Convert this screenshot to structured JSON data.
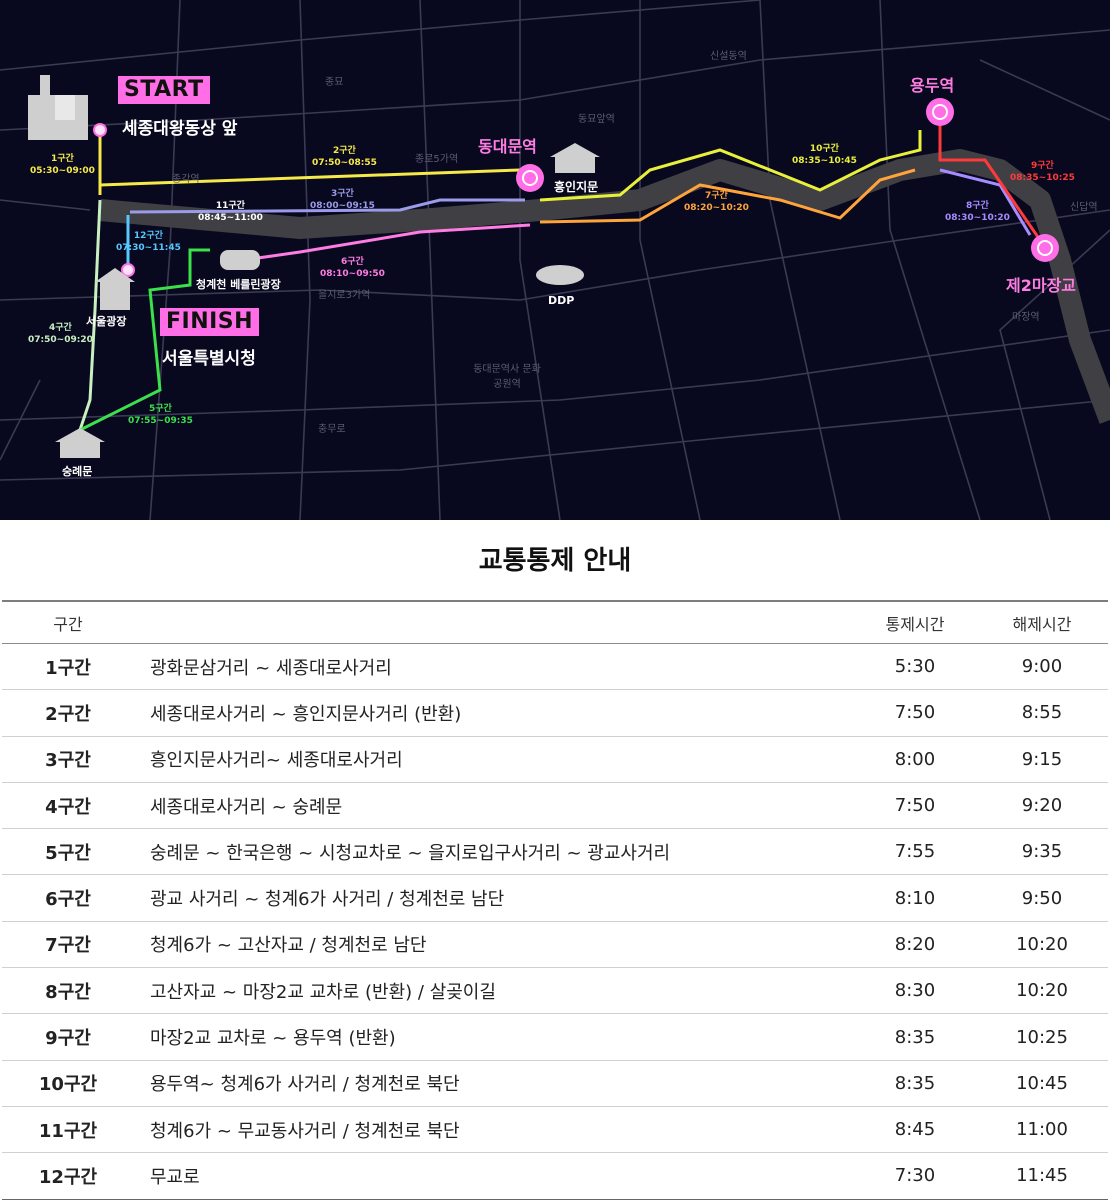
{
  "map": {
    "streets": [
      "종묘",
      "신설동역",
      "동묘앞역",
      "종로5가역",
      "종각역",
      "을지로3가역",
      "동대문역사 문화공원역",
      "충무로",
      "신답역",
      "마장역"
    ],
    "start": {
      "tag": "START",
      "place": "세종대왕동상 앞"
    },
    "finish": {
      "tag": "FINISH",
      "place": "서울특별시청"
    },
    "places": {
      "dongdaemun": "동대문역",
      "heunginjimun": "흥인지문",
      "yongdu": "용두역",
      "majanggyo": "제2마장교",
      "cheonggye": "청계천 베를린광장",
      "seoulplaza": "서울광장",
      "sungnyemun": "숭례문",
      "ddp": "DDP"
    },
    "segments": [
      {
        "name": "1구간",
        "time": "05:30~09:00",
        "color": "#f6e94a"
      },
      {
        "name": "2구간",
        "time": "07:50~08:55",
        "color": "#f6e94a"
      },
      {
        "name": "3구간",
        "time": "08:00~09:15",
        "color": "#9b9be8"
      },
      {
        "name": "4구간",
        "time": "07:50~09:20",
        "color": "#c9f0c0"
      },
      {
        "name": "5구간",
        "time": "07:55~09:35",
        "color": "#3be04b"
      },
      {
        "name": "6구간",
        "time": "08:10~09:50",
        "color": "#ff7de3"
      },
      {
        "name": "7구간",
        "time": "08:20~10:20",
        "color": "#ffa43a"
      },
      {
        "name": "8구간",
        "time": "08:30~10:20",
        "color": "#a68cff"
      },
      {
        "name": "9구간",
        "time": "08:35~10:25",
        "color": "#ff3a3a"
      },
      {
        "name": "10구간",
        "time": "08:35~10:45",
        "color": "#e9f03a"
      },
      {
        "name": "11구간",
        "time": "08:45~11:00",
        "color": "#ffffff"
      },
      {
        "name": "12구간",
        "time": "07:30~11:45",
        "color": "#57c8ff"
      }
    ]
  },
  "title": "교통통제 안내",
  "table": {
    "headers": {
      "segment": "구간",
      "description": "",
      "start": "통제시간",
      "end": "해제시간"
    },
    "rows": [
      {
        "segment": "1구간",
        "description": "광화문삼거리 ~ 세종대로사거리",
        "start": "5:30",
        "end": "9:00"
      },
      {
        "segment": "2구간",
        "description": "세종대로사거리 ~ 흥인지문사거리 (반환)",
        "start": "7:50",
        "end": "8:55"
      },
      {
        "segment": "3구간",
        "description": "흥인지문사거리~ 세종대로사거리",
        "start": "8:00",
        "end": "9:15"
      },
      {
        "segment": "4구간",
        "description": "세종대로사거리 ~ 숭례문",
        "start": "7:50",
        "end": "9:20"
      },
      {
        "segment": "5구간",
        "description": "숭례문 ~ 한국은행 ~ 시청교차로 ~ 을지로입구사거리 ~ 광교사거리",
        "start": "7:55",
        "end": "9:35"
      },
      {
        "segment": "6구간",
        "description": "광교 사거리 ~ 청계6가 사거리 / 청계천로 남단",
        "start": "8:10",
        "end": "9:50"
      },
      {
        "segment": "7구간",
        "description": "청계6가 ~ 고산자교 / 청계천로 남단",
        "start": "8:20",
        "end": "10:20"
      },
      {
        "segment": "8구간",
        "description": "고산자교 ~ 마장2교 교차로 (반환) / 살곶이길",
        "start": "8:30",
        "end": "10:20"
      },
      {
        "segment": "9구간",
        "description": "마장2교 교차로 ~ 용두역 (반환)",
        "start": "8:35",
        "end": "10:25"
      },
      {
        "segment": "10구간",
        "description": "용두역~ 청계6가 사거리 / 청계천로 북단",
        "start": "8:35",
        "end": "10:45"
      },
      {
        "segment": "11구간",
        "description": "청계6가 ~ 무교동사거리 / 청계천로 북단",
        "start": "8:45",
        "end": "11:00"
      },
      {
        "segment": "12구간",
        "description": "무교로",
        "start": "7:30",
        "end": "11:45"
      }
    ]
  }
}
